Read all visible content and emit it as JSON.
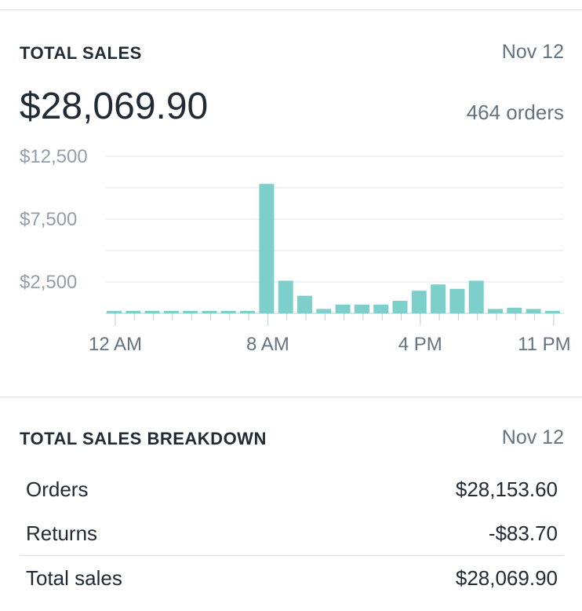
{
  "sales": {
    "title": "TOTAL SALES",
    "date": "Nov 12",
    "total": "$28,069.90",
    "orders": "464 orders"
  },
  "chart_data": {
    "type": "bar",
    "color": "#7ccfcb",
    "categories": [
      "12 AM",
      "1 AM",
      "2 AM",
      "3 AM",
      "4 AM",
      "5 AM",
      "6 AM",
      "7 AM",
      "8 AM",
      "9 AM",
      "10 AM",
      "11 AM",
      "12 PM",
      "1 PM",
      "2 PM",
      "3 PM",
      "4 PM",
      "5 PM",
      "6 PM",
      "7 PM",
      "8 PM",
      "9 PM",
      "10 PM",
      "11 PM"
    ],
    "values": [
      200,
      200,
      200,
      200,
      200,
      200,
      200,
      200,
      10300,
      2600,
      1400,
      350,
      700,
      700,
      700,
      1000,
      1800,
      2300,
      1950,
      2600,
      350,
      450,
      350,
      200
    ],
    "ylim": [
      0,
      12500
    ],
    "yticks": [
      12500,
      10000,
      7500,
      5000,
      2500,
      0
    ],
    "ytick_labels": [
      "$12,500",
      "$7,500",
      "$2,500"
    ],
    "ytick_label_values": [
      12500,
      7500,
      2500
    ],
    "xtick_labels": [
      "12 AM",
      "8 AM",
      "4 PM",
      "11 PM"
    ],
    "xtick_label_index": [
      0,
      8,
      16,
      23
    ],
    "grid": true
  },
  "breakdown": {
    "title": "TOTAL SALES BREAKDOWN",
    "date": "Nov 12",
    "rows": [
      {
        "label": "Orders",
        "value": "$28,153.60"
      },
      {
        "label": "Returns",
        "value": "-$83.70"
      },
      {
        "label": "Total sales",
        "value": "$28,069.90"
      }
    ]
  }
}
